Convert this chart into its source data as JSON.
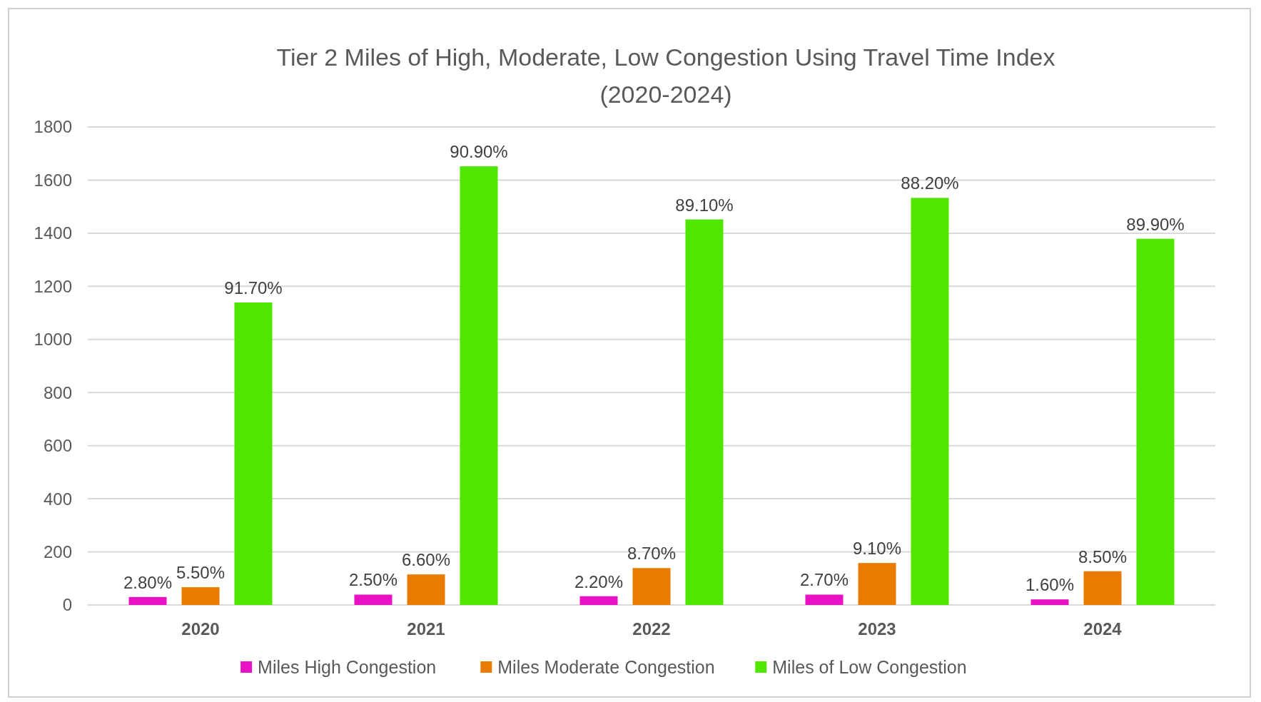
{
  "chart_data": {
    "type": "bar",
    "title": "Tier 2 Miles of High, Moderate, Low Congestion Using Travel Time Index\n(2020-2024)",
    "categories": [
      "2020",
      "2021",
      "2022",
      "2023",
      "2024"
    ],
    "series": [
      {
        "name": "Miles High Congestion",
        "color": "#e812c4",
        "values": [
          30,
          39,
          33,
          39,
          21
        ]
      },
      {
        "name": "Miles Moderate Congestion",
        "color": "#e97c00",
        "values": [
          67,
          115,
          139,
          158,
          127
        ]
      },
      {
        "name": "Miles of Low Congestion",
        "color": "#4fe600",
        "values": [
          1139,
          1652,
          1452,
          1533,
          1379
        ]
      }
    ],
    "annotations": [
      "2.80%",
      "2.50%",
      "2.20%",
      "2.70%",
      "1.60%",
      "5.50%",
      "6.60%",
      "8.70%",
      "9.10%",
      "8.50%",
      "91.70%",
      "90.90%",
      "89.10%",
      "88.20%",
      "89.90%"
    ],
    "ylim": [
      0,
      1800
    ],
    "yticks": [
      0,
      200,
      400,
      600,
      800,
      1000,
      1200,
      1400,
      1600,
      1800
    ],
    "grid": "y",
    "legend": "bottom"
  }
}
